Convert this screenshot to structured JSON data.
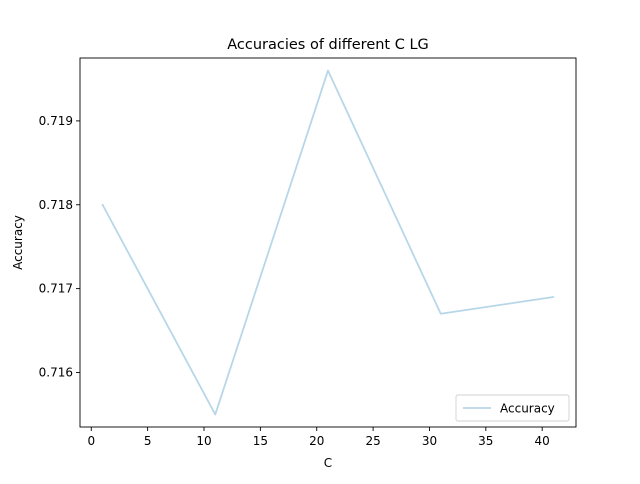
{
  "chart_data": {
    "type": "line",
    "title": "Accuracies of different C LG",
    "xlabel": "C",
    "ylabel": "Accuracy",
    "x": [
      1,
      11,
      21,
      31,
      41
    ],
    "series": [
      {
        "name": "Accuracy",
        "color": "#b7d7e8",
        "values": [
          0.718,
          0.7155,
          0.7196,
          0.7167,
          0.7169
        ]
      }
    ],
    "xlim": [
      -1,
      43
    ],
    "ylim": [
      0.71535,
      0.71975
    ],
    "xticks": [
      0,
      5,
      10,
      15,
      20,
      25,
      30,
      35,
      40
    ],
    "yticks": [
      0.716,
      0.717,
      0.718,
      0.719
    ],
    "ytick_labels": [
      "0.716",
      "0.717",
      "0.718",
      "0.719"
    ],
    "grid": false,
    "legend_position": "lower right"
  }
}
